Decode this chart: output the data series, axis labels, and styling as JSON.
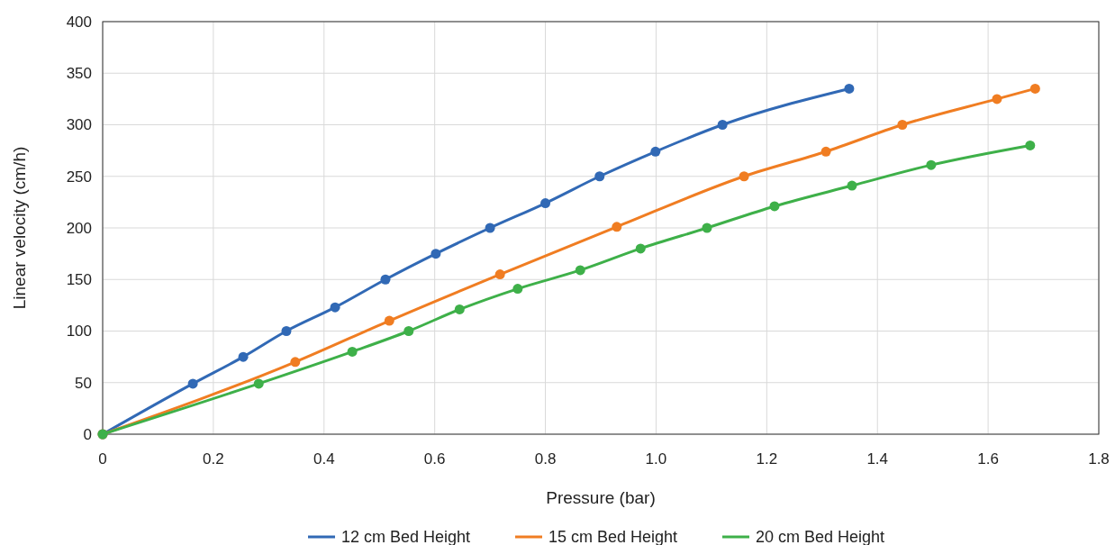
{
  "chart_data": {
    "type": "line",
    "xlabel": "Pressure (bar)",
    "ylabel": "Linear velocity (cm/h)",
    "xlim": [
      0,
      1.8
    ],
    "xticks": [
      0,
      0.2,
      0.4,
      0.6,
      0.8,
      {
        "value": 1,
        "label": "1.0"
      },
      1.2,
      1.4,
      1.6,
      1.8
    ],
    "ylim": [
      0,
      400
    ],
    "yticks": [
      0,
      50,
      100,
      150,
      200,
      250,
      300,
      350,
      400
    ],
    "grid": true,
    "legend": "bottom",
    "marker": "circle",
    "line_style": "solid",
    "series": [
      {
        "name": "12 cm Bed Height",
        "color": "#3169b5",
        "x": [
          0,
          0.163,
          0.254,
          0.332,
          0.42,
          0.511,
          0.602,
          0.7,
          0.8,
          0.898,
          0.999,
          1.12,
          1.349
        ],
        "values": [
          0,
          49,
          75,
          100,
          123,
          150,
          175,
          200,
          224,
          250,
          274,
          300,
          335
        ]
      },
      {
        "name": "15 cm Bed Height",
        "color": "#f07d22",
        "x": [
          0,
          0.348,
          0.518,
          0.718,
          0.929,
          1.159,
          1.307,
          1.445,
          1.616,
          1.685
        ],
        "values": [
          0,
          70,
          110,
          155,
          201,
          250,
          274,
          300,
          325,
          335
        ]
      },
      {
        "name": "20 cm Bed Height",
        "color": "#3eb049",
        "x": [
          0,
          0.282,
          0.451,
          0.553,
          0.645,
          0.75,
          0.863,
          0.972,
          1.092,
          1.214,
          1.354,
          1.497,
          1.676
        ],
        "values": [
          0,
          49,
          80,
          100,
          121,
          141,
          159,
          180,
          200,
          221,
          241,
          261,
          280
        ]
      }
    ]
  }
}
